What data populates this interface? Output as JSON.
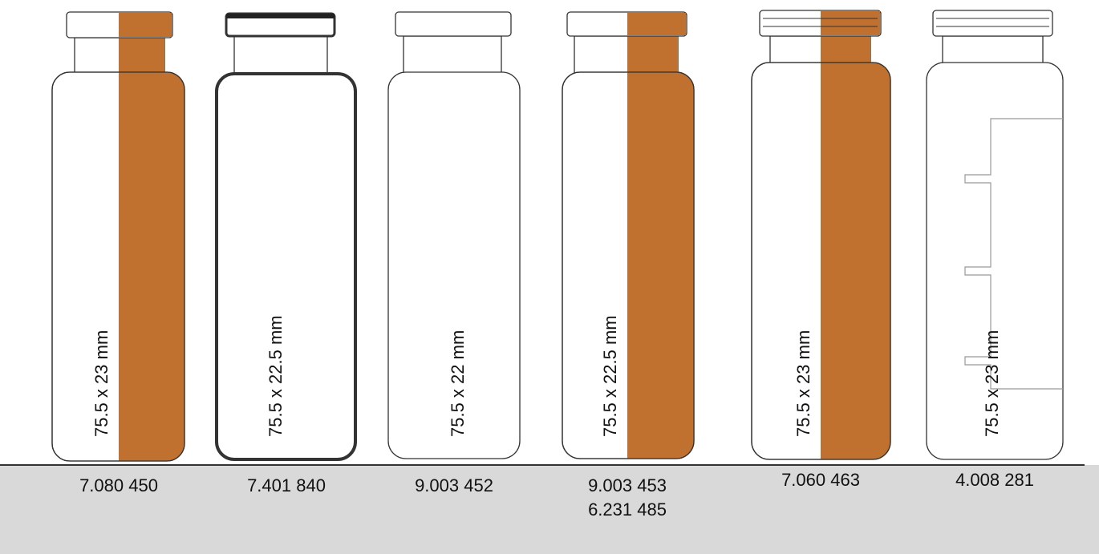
{
  "vials": [
    {
      "size": "75.5 x 23 mm",
      "codes": [
        "7.080 450"
      ]
    },
    {
      "size": "75.5 x 22.5 mm",
      "codes": [
        "7.401 840"
      ]
    },
    {
      "size": "75.5 x 22 mm",
      "codes": [
        "9.003 452"
      ]
    },
    {
      "size": "75.5 x 22.5 mm",
      "codes": [
        "9.003 453",
        "6.231 485"
      ]
    },
    {
      "size": "75.5 x 23 mm",
      "codes": [
        "7.060 463"
      ]
    },
    {
      "size": "75.5 x 23 mm",
      "codes": [
        "4.008 281"
      ]
    }
  ]
}
